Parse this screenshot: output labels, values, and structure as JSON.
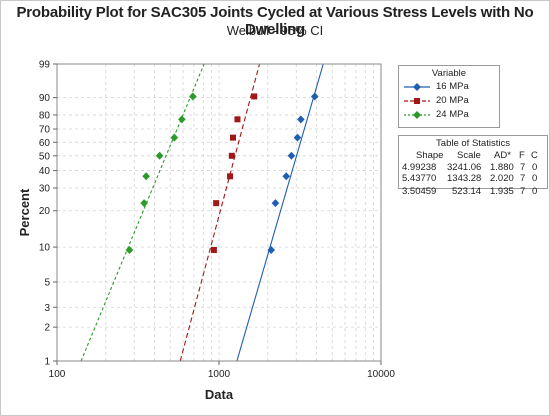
{
  "chart_data": {
    "type": "scatter",
    "title": "Probability Plot for SAC305 Joints Cycled at Various Stress Levels with No Dwelling",
    "subtitle": "Weibull - 95% CI",
    "xlabel": "Data",
    "ylabel": "Percent",
    "x_scale": "log",
    "y_scale": "weibull",
    "xlim": [
      100,
      10000
    ],
    "ylim": [
      1,
      99
    ],
    "x_ticks": [
      100,
      1000,
      10000
    ],
    "x_tick_labels": [
      "100",
      "1000",
      "10000"
    ],
    "y_ticks": [
      1,
      2,
      3,
      5,
      10,
      20,
      30,
      40,
      50,
      60,
      70,
      80,
      90,
      99
    ],
    "y_tick_labels": [
      "1",
      "2",
      "3",
      "5",
      "10",
      "20",
      "30",
      "40",
      "50",
      "60",
      "70",
      "80",
      "90",
      "99"
    ],
    "grid": true,
    "legend_title": "Variable",
    "legend_position": "right",
    "series": [
      {
        "name": "16 MPa",
        "color": "#1f5fb0",
        "marker": "diamond",
        "line_style": "solid",
        "shape": 4.99238,
        "scale": 3241.06,
        "points": [
          [
            2100,
            9.45
          ],
          [
            2230,
            22.97
          ],
          [
            2600,
            36.49
          ],
          [
            2800,
            50.0
          ],
          [
            3050,
            63.51
          ],
          [
            3200,
            77.03
          ],
          [
            3900,
            90.54
          ]
        ]
      },
      {
        "name": "20 MPa",
        "color": "#a01818",
        "marker": "square",
        "line_style": "dashed",
        "shape": 5.4377,
        "scale": 1343.28,
        "points": [
          [
            930,
            9.45
          ],
          [
            960,
            22.97
          ],
          [
            1170,
            36.49
          ],
          [
            1200,
            50.0
          ],
          [
            1220,
            63.51
          ],
          [
            1300,
            77.03
          ],
          [
            1650,
            90.54
          ]
        ]
      },
      {
        "name": "24 MPa",
        "color": "#2a9a2a",
        "marker": "diamond",
        "line_style": "dashed",
        "shape": 3.50459,
        "scale": 523.14,
        "points": [
          [
            280,
            9.45
          ],
          [
            345,
            22.97
          ],
          [
            355,
            36.49
          ],
          [
            430,
            50.0
          ],
          [
            530,
            63.51
          ],
          [
            590,
            77.03
          ],
          [
            690,
            90.54
          ]
        ]
      }
    ],
    "statistics_table": {
      "title": "Table of Statistics",
      "headers": [
        "Shape",
        "Scale",
        "AD*",
        "F",
        "C"
      ],
      "rows": [
        [
          "4.99238",
          "3241.06",
          "1.880",
          "7",
          "0"
        ],
        [
          "5.43770",
          "1343.28",
          "2.020",
          "7",
          "0"
        ],
        [
          "3.50459",
          "523.14",
          "1.935",
          "7",
          "0"
        ]
      ]
    }
  }
}
